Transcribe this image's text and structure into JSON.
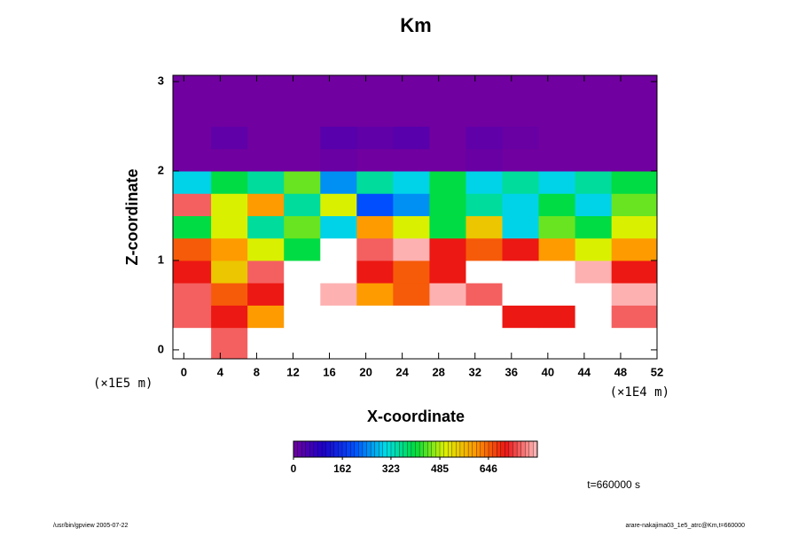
{
  "chart_data": {
    "type": "heatmap",
    "title": "Km",
    "x_label": "X-coordinate",
    "y_label": "Z-coordinate",
    "x_unit": "(×1E4 m)",
    "y_unit": "(×1E5 m)",
    "time_label": "t=660000 s",
    "footer_left": "/usr/bin/gpview 2005-07-22",
    "footer_right": "arare-nakajima03_1e5_atrc@Km,t=660000",
    "xlim": [
      -1.2,
      52
    ],
    "ylim": [
      -0.1,
      3.07
    ],
    "xticks": [
      0,
      4,
      8,
      12,
      16,
      20,
      24,
      28,
      32,
      36,
      40,
      44,
      48,
      52
    ],
    "yticks": [
      0,
      1,
      2,
      3
    ],
    "x_edges": [
      -1.2,
      3,
      7,
      11,
      15,
      19,
      23,
      27,
      31,
      35,
      39,
      43,
      47,
      52
    ],
    "y_edges": [
      -0.1,
      0.25,
      0.5,
      0.75,
      1.0,
      1.25,
      1.5,
      1.75,
      2.0,
      2.25,
      2.5,
      2.75,
      3.07
    ],
    "z": [
      [
        900,
        750,
        900,
        900,
        900,
        900,
        900,
        900,
        900,
        900,
        900,
        900,
        900
      ],
      [
        750,
        700,
        600,
        900,
        900,
        900,
        900,
        900,
        900,
        700,
        700,
        900,
        750
      ],
      [
        750,
        650,
        700,
        900,
        800,
        600,
        650,
        800,
        750,
        900,
        900,
        900,
        800
      ],
      [
        700,
        550,
        750,
        900,
        900,
        700,
        650,
        700,
        900,
        900,
        900,
        800,
        700
      ],
      [
        650,
        600,
        500,
        400,
        900,
        750,
        800,
        700,
        650,
        700,
        600,
        500,
        600
      ],
      [
        400,
        500,
        350,
        450,
        300,
        600,
        500,
        400,
        550,
        300,
        450,
        400,
        500
      ],
      [
        750,
        500,
        600,
        350,
        500,
        200,
        250,
        400,
        350,
        300,
        400,
        300,
        450
      ],
      [
        300,
        400,
        350,
        450,
        250,
        350,
        300,
        400,
        300,
        350,
        300,
        350,
        400
      ],
      [
        0,
        0,
        0,
        0,
        10,
        0,
        0,
        0,
        10,
        0,
        0,
        0,
        0
      ],
      [
        0,
        20,
        0,
        0,
        30,
        20,
        30,
        0,
        20,
        10,
        0,
        0,
        0
      ],
      [
        0,
        0,
        0,
        0,
        0,
        0,
        0,
        0,
        0,
        0,
        0,
        0,
        0
      ],
      [
        0,
        0,
        0,
        0,
        0,
        0,
        0,
        0,
        0,
        0,
        0,
        0,
        0
      ]
    ],
    "zlim": [
      0,
      808
    ],
    "colorbar_ticks": [
      0,
      162,
      323,
      485,
      646
    ],
    "over_color": "#ffffff"
  }
}
